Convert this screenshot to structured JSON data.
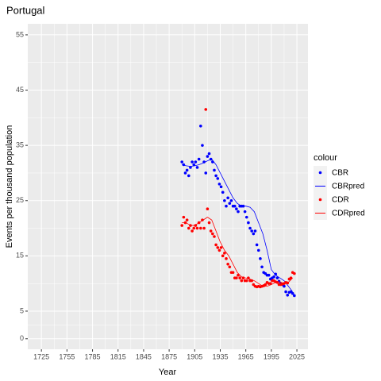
{
  "chart_data": {
    "type": "scatter",
    "title": "Portugal",
    "x_label": "Year",
    "y_label": "Events per thousand population",
    "legend_title": "colour",
    "legend_position": "right",
    "xlim": [
      1709,
      2038
    ],
    "xticks": [
      1725,
      1755,
      1785,
      1815,
      1845,
      1875,
      1905,
      1935,
      1965,
      1995,
      2025
    ],
    "ylim": [
      -1.9,
      57
    ],
    "yticks": [
      0,
      5,
      15,
      25,
      35,
      45,
      55
    ],
    "grid": true,
    "series": [
      {
        "name": "CBR",
        "color": "#0000ff",
        "style": "point",
        "x": [
          1890,
          1892,
          1894,
          1896,
          1898,
          1900,
          1902,
          1904,
          1906,
          1908,
          1910,
          1912,
          1914,
          1916,
          1918,
          1920,
          1922,
          1924,
          1926,
          1928,
          1930,
          1932,
          1934,
          1936,
          1938,
          1940,
          1942,
          1944,
          1946,
          1948,
          1950,
          1952,
          1954,
          1956,
          1958,
          1960,
          1962,
          1964,
          1966,
          1968,
          1970,
          1972,
          1974,
          1976,
          1978,
          1980,
          1982,
          1984,
          1986,
          1988,
          1990,
          1992,
          1994,
          1996,
          1998,
          2000,
          2002,
          2004,
          2006,
          2008,
          2010,
          2012,
          2014,
          2016,
          2018,
          2020,
          2022
        ],
        "values": [
          32.0,
          31.5,
          30.0,
          30.5,
          29.5,
          31.0,
          32.0,
          31.5,
          32.0,
          31.0,
          32.5,
          38.5,
          35.0,
          32.0,
          30.0,
          33.0,
          33.5,
          32.5,
          32.0,
          30.5,
          29.5,
          29.0,
          28.0,
          27.5,
          26.5,
          25.0,
          24.0,
          25.5,
          24.5,
          25.0,
          24.0,
          24.0,
          23.5,
          23.0,
          24.0,
          24.0,
          24.0,
          23.0,
          22.0,
          21.0,
          20.0,
          19.5,
          19.0,
          19.5,
          17.0,
          16.0,
          14.5,
          13.0,
          12.0,
          11.8,
          11.5,
          11.5,
          10.8,
          11.0,
          11.2,
          11.7,
          11.0,
          10.4,
          10.0,
          9.8,
          9.5,
          8.5,
          7.9,
          8.4,
          8.5,
          8.2,
          7.8
        ]
      },
      {
        "name": "CBRpred",
        "color": "#0000ff",
        "style": "line",
        "x": [
          1890,
          1895,
          1900,
          1905,
          1910,
          1915,
          1920,
          1925,
          1930,
          1935,
          1940,
          1945,
          1950,
          1955,
          1960,
          1965,
          1970,
          1975,
          1980,
          1985,
          1990,
          1995,
          2000,
          2005,
          2010,
          2015,
          2020
        ],
        "values": [
          31.5,
          31.3,
          31.2,
          31.3,
          31.5,
          31.8,
          32.2,
          32.5,
          31.5,
          30.0,
          28.5,
          27.0,
          25.5,
          24.5,
          24.0,
          24.0,
          23.8,
          23.0,
          21.0,
          19.0,
          16.0,
          12.5,
          11.5,
          11.0,
          10.5,
          9.5,
          8.5
        ]
      },
      {
        "name": "CDR",
        "color": "#ff0000",
        "style": "point",
        "x": [
          1890,
          1892,
          1894,
          1896,
          1898,
          1900,
          1902,
          1904,
          1906,
          1908,
          1910,
          1912,
          1914,
          1916,
          1918,
          1920,
          1922,
          1924,
          1926,
          1928,
          1930,
          1932,
          1934,
          1936,
          1938,
          1940,
          1942,
          1944,
          1946,
          1948,
          1950,
          1952,
          1954,
          1956,
          1958,
          1960,
          1962,
          1964,
          1966,
          1968,
          1970,
          1972,
          1974,
          1976,
          1978,
          1980,
          1982,
          1984,
          1986,
          1988,
          1990,
          1992,
          1994,
          1996,
          1998,
          2000,
          2002,
          2004,
          2006,
          2008,
          2010,
          2012,
          2014,
          2016,
          2018,
          2020,
          2022
        ],
        "values": [
          20.5,
          22.0,
          21.0,
          21.5,
          20.0,
          20.5,
          19.5,
          20.0,
          20.5,
          20.0,
          21.0,
          20.0,
          21.5,
          20.0,
          41.5,
          23.5,
          21.0,
          19.5,
          19.0,
          18.5,
          17.0,
          16.5,
          16.0,
          16.5,
          15.0,
          15.5,
          14.5,
          13.5,
          13.0,
          12.0,
          12.0,
          11.0,
          11.0,
          11.5,
          11.0,
          10.5,
          11.0,
          10.5,
          10.5,
          11.0,
          10.5,
          10.5,
          9.8,
          9.5,
          9.4,
          9.5,
          9.4,
          9.5,
          9.6,
          9.8,
          10.2,
          10.0,
          10.0,
          10.5,
          10.5,
          10.3,
          10.2,
          9.8,
          9.8,
          9.9,
          10.0,
          10.2,
          10.1,
          10.8,
          11.0,
          12.0,
          11.8
        ]
      },
      {
        "name": "CDRpred",
        "color": "#ff0000",
        "style": "line",
        "x": [
          1890,
          1895,
          1900,
          1905,
          1910,
          1915,
          1920,
          1925,
          1930,
          1935,
          1940,
          1945,
          1950,
          1955,
          1960,
          1965,
          1970,
          1975,
          1980,
          1985,
          1990,
          1995,
          2000,
          2005,
          2010,
          2015,
          2020
        ],
        "values": [
          21.0,
          21.0,
          20.5,
          20.5,
          21.0,
          21.5,
          22.0,
          21.5,
          19.5,
          17.5,
          16.0,
          15.0,
          13.5,
          12.0,
          11.2,
          11.0,
          10.8,
          10.5,
          10.0,
          9.5,
          9.5,
          9.8,
          10.2,
          10.3,
          10.0,
          10.2,
          11.0
        ]
      }
    ]
  }
}
